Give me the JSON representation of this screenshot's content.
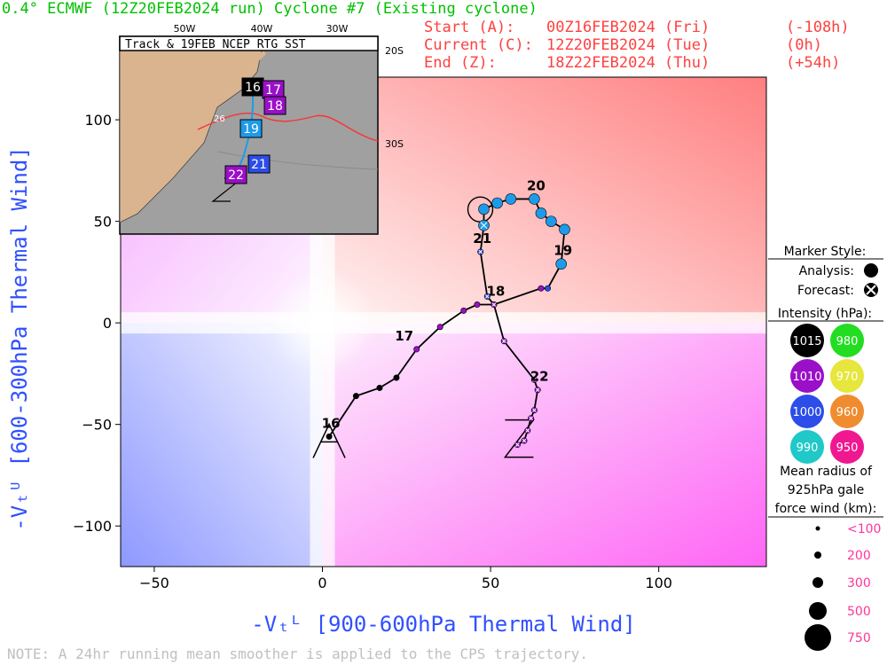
{
  "header": {
    "title": "0.4° ECMWF (12Z20FEB2024 run) Cyclone #7 (Existing cyclone)",
    "start_label": "Start (A):",
    "start_value": "00Z16FEB2024 (Fri)",
    "start_offset": "(-108h)",
    "current_label": "Current (C):",
    "current_value": "12Z20FEB2024 (Tue)",
    "current_offset": "(0h)",
    "end_label": "End (Z):",
    "end_value": "18Z22FEB2024 (Thu)",
    "end_offset": "(+54h)"
  },
  "colors": {
    "title": "#00c000",
    "header_red": "#ff4040",
    "axis_label": "#3050ff",
    "track": "#000000"
  },
  "inset": {
    "title": "Track & 19FEB NCEP RTG SST",
    "lon_labels": [
      "50W",
      "40W",
      "30W"
    ],
    "lat_labels": [
      "20S",
      "30S"
    ],
    "sst_label": "26",
    "boxes": [
      {
        "label": "16",
        "color": "#000000"
      },
      {
        "label": "17",
        "color": "#9a10c8"
      },
      {
        "label": "18",
        "color": "#9a10c8"
      },
      {
        "label": "19",
        "color": "#1e9be8"
      },
      {
        "label": "21",
        "color": "#2c4de8"
      },
      {
        "label": "22",
        "color": "#9a10c8"
      }
    ]
  },
  "legend": {
    "marker_title": "Marker Style:",
    "analysis": "Analysis:",
    "forecast": "Forecast:",
    "intensity_title": "Intensity (hPa):",
    "intensity": [
      {
        "label": "1015",
        "color": "#000000"
      },
      {
        "label": "980",
        "color": "#22dd22"
      },
      {
        "label": "1010",
        "color": "#9a10c8"
      },
      {
        "label": "970",
        "color": "#e6e63c"
      },
      {
        "label": "1000",
        "color": "#2c4de8"
      },
      {
        "label": "960",
        "color": "#f08c30"
      },
      {
        "label": "990",
        "color": "#20c8c8"
      },
      {
        "label": "950",
        "color": "#f01890"
      }
    ],
    "radius_title_1": "Mean radius of",
    "radius_title_2": "925hPa gale",
    "radius_title_3": "force wind (km):",
    "radius": [
      "<100",
      "200",
      "300",
      "500",
      "750"
    ]
  },
  "note": "NOTE: A 24hr running mean smoother is applied to the CPS trajectory.",
  "chart_data": {
    "type": "scatter",
    "xlabel": "-Vₜᴸ [900-600hPa Thermal Wind]",
    "ylabel": "-Vₜᵁ [600-300hPa Thermal Wind]",
    "xlim": [
      -60,
      132
    ],
    "ylim": [
      -120,
      121
    ],
    "xticks": [
      -50,
      0,
      50,
      100
    ],
    "yticks": [
      -100,
      -50,
      0,
      50,
      100
    ],
    "track": [
      {
        "x": 2,
        "y": -56,
        "c": "#000000",
        "type": "analysis",
        "day": "16"
      },
      {
        "x": 10,
        "y": -36,
        "c": "#000000",
        "type": "analysis"
      },
      {
        "x": 17,
        "y": -32,
        "c": "#000000",
        "type": "analysis"
      },
      {
        "x": 22,
        "y": -27,
        "c": "#000000",
        "type": "analysis"
      },
      {
        "x": 28,
        "y": -13,
        "c": "#9a10c8",
        "type": "analysis",
        "day": "17"
      },
      {
        "x": 35,
        "y": -2,
        "c": "#9a10c8",
        "type": "analysis"
      },
      {
        "x": 42,
        "y": 6,
        "c": "#9a10c8",
        "type": "analysis"
      },
      {
        "x": 46,
        "y": 9,
        "c": "#9a10c8",
        "type": "analysis"
      },
      {
        "x": 51,
        "y": 9,
        "c": "#9a10c8",
        "type": "analysis",
        "day": "18"
      },
      {
        "x": 65,
        "y": 17,
        "c": "#9a10c8",
        "type": "analysis"
      },
      {
        "x": 67,
        "y": 17,
        "c": "#2c4de8",
        "type": "analysis"
      },
      {
        "x": 71,
        "y": 29,
        "c": "#1e9be8",
        "type": "analysis",
        "day": "19"
      },
      {
        "x": 72,
        "y": 46,
        "c": "#1e9be8",
        "type": "analysis"
      },
      {
        "x": 68,
        "y": 50,
        "c": "#1e9be8",
        "type": "analysis"
      },
      {
        "x": 65,
        "y": 54,
        "c": "#1e9be8",
        "type": "analysis"
      },
      {
        "x": 63,
        "y": 61,
        "c": "#1e9be8",
        "type": "analysis",
        "day": "20"
      },
      {
        "x": 56,
        "y": 61,
        "c": "#1e9be8",
        "type": "analysis"
      },
      {
        "x": 52,
        "y": 59,
        "c": "#1e9be8",
        "type": "analysis"
      },
      {
        "x": 48,
        "y": 56,
        "c": "#1e9be8",
        "type": "analysis"
      },
      {
        "x": 48,
        "y": 48,
        "c": "#1e9be8",
        "type": "forecast"
      },
      {
        "x": 47,
        "y": 35,
        "c": "#2c4de8",
        "type": "forecast",
        "day": "21"
      },
      {
        "x": 49,
        "y": 13,
        "c": "#2c4de8",
        "type": "forecast"
      },
      {
        "x": 51,
        "y": 9,
        "c": "#9a10c8",
        "type": "forecast"
      },
      {
        "x": 54,
        "y": -9,
        "c": "#9a10c8",
        "type": "forecast"
      },
      {
        "x": 63,
        "y": -28,
        "c": "#9a10c8",
        "type": "forecast"
      },
      {
        "x": 64,
        "y": -33,
        "c": "#9a10c8",
        "type": "forecast",
        "day": "22"
      },
      {
        "x": 63,
        "y": -43,
        "c": "#9a10c8",
        "type": "forecast"
      },
      {
        "x": 62,
        "y": -47,
        "c": "#9a10c8",
        "type": "forecast"
      },
      {
        "x": 61,
        "y": -53,
        "c": "#9a10c8",
        "type": "forecast"
      },
      {
        "x": 60,
        "y": -58,
        "c": "#9a10c8",
        "type": "forecast"
      },
      {
        "x": 58,
        "y": -60,
        "c": "#9a10c8",
        "type": "forecast"
      }
    ],
    "start_marker": "A",
    "end_marker": "Z"
  }
}
